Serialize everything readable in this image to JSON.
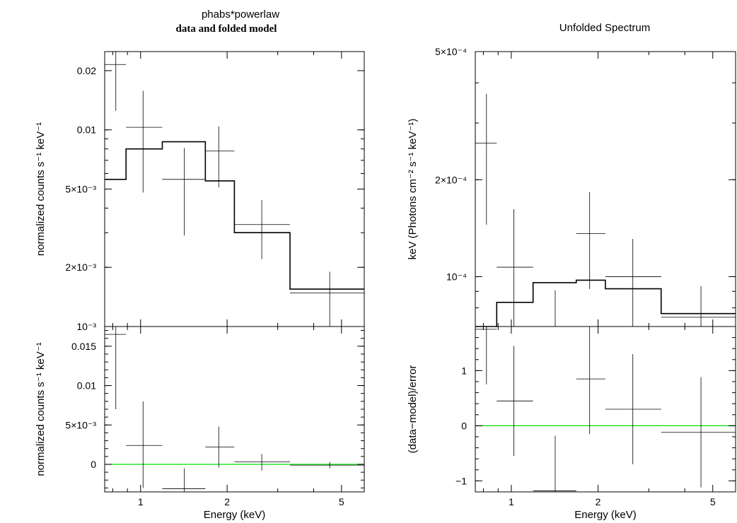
{
  "left": {
    "title": "phabs*powerlaw",
    "subtitle": "data and folded model"
  },
  "right": {
    "title": "Unfolded Spectrum"
  },
  "colors": {
    "axes": "#000000",
    "zero_line": "#00dd00"
  },
  "chart_data": [
    {
      "id": "left-top",
      "type": "line",
      "ylabel": "normalized counts s⁻¹ keV⁻¹",
      "xscale": "log",
      "yscale": "log",
      "xlim": [
        0.75,
        6.0
      ],
      "ylim": [
        0.001,
        0.025
      ],
      "xticks": [
        "1",
        "2",
        "5"
      ],
      "yticks": [
        "10⁻³",
        "2×10⁻³",
        "5×10⁻³",
        "0.01",
        "0.02"
      ],
      "data": [
        {
          "x": 0.82,
          "xlo": 0.75,
          "xhi": 0.89,
          "y": 0.0215,
          "ylo": 0.0125,
          "yhi": 0.025
        },
        {
          "x": 1.02,
          "xlo": 0.89,
          "xhi": 1.19,
          "y": 0.0103,
          "ylo": 0.0048,
          "yhi": 0.0158
        },
        {
          "x": 1.42,
          "xlo": 1.19,
          "xhi": 1.68,
          "y": 0.0056,
          "ylo": 0.0029,
          "yhi": 0.0081
        },
        {
          "x": 1.87,
          "xlo": 1.68,
          "xhi": 2.12,
          "y": 0.0078,
          "ylo": 0.0051,
          "yhi": 0.0104
        },
        {
          "x": 2.64,
          "xlo": 2.12,
          "xhi": 3.31,
          "y": 0.0033,
          "ylo": 0.0022,
          "yhi": 0.0044
        },
        {
          "x": 4.55,
          "xlo": 3.31,
          "xhi": 6.0,
          "y": 0.00148,
          "ylo": 0.001,
          "yhi": 0.0019
        }
      ],
      "model": [
        0.0056,
        0.008,
        0.0087,
        0.0055,
        0.003,
        0.00155
      ]
    },
    {
      "id": "left-bottom",
      "type": "line",
      "xlabel": "Energy (keV)",
      "ylabel": "normalized counts s⁻¹ keV⁻¹",
      "xscale": "log",
      "yscale": "linear",
      "xlim": [
        0.75,
        6.0
      ],
      "ylim": [
        -0.0035,
        0.0175
      ],
      "xticks": [
        "1",
        "2",
        "5"
      ],
      "yticks": [
        "0",
        "5×10⁻³",
        "0.01",
        "0.015"
      ],
      "zero_line": 0,
      "data": [
        {
          "x": 0.82,
          "xlo": 0.75,
          "xhi": 0.89,
          "y": 0.0165,
          "ylo": 0.007,
          "yhi": 0.0175
        },
        {
          "x": 1.02,
          "xlo": 0.89,
          "xhi": 1.19,
          "y": 0.0024,
          "ylo": -0.003,
          "yhi": 0.008
        },
        {
          "x": 1.42,
          "xlo": 1.19,
          "xhi": 1.68,
          "y": -0.0031,
          "ylo": -0.0035,
          "yhi": -0.0005
        },
        {
          "x": 1.87,
          "xlo": 1.68,
          "xhi": 2.12,
          "y": 0.0022,
          "ylo": -0.0004,
          "yhi": 0.0048
        },
        {
          "x": 2.64,
          "xlo": 2.12,
          "xhi": 3.31,
          "y": 0.0003,
          "ylo": -0.0008,
          "yhi": 0.0013
        },
        {
          "x": 4.55,
          "xlo": 3.31,
          "xhi": 6.0,
          "y": -0.0001,
          "ylo": -0.0005,
          "yhi": 0.0003
        }
      ]
    },
    {
      "id": "right-top",
      "type": "line",
      "ylabel": "keV (Photons cm⁻² s⁻¹ keV⁻¹)",
      "xscale": "log",
      "yscale": "log",
      "xlim": [
        0.75,
        6.0
      ],
      "ylim": [
        7e-05,
        0.0005
      ],
      "xticks": [
        "1",
        "2",
        "5"
      ],
      "yticks": [
        "10⁻⁴",
        "2×10⁻⁴",
        "5×10⁻⁴"
      ],
      "data": [
        {
          "x": 0.82,
          "xlo": 0.75,
          "xhi": 0.89,
          "y": 0.00026,
          "ylo": 0.000145,
          "yhi": 0.00037
        },
        {
          "x": 1.02,
          "xlo": 0.89,
          "xhi": 1.19,
          "y": 0.000107,
          "ylo": 7e-05,
          "yhi": 0.000162
        },
        {
          "x": 1.42,
          "xlo": 1.19,
          "xhi": 1.68,
          "y": null,
          "ylo": 7e-05,
          "yhi": 9.07e-05
        },
        {
          "x": 1.87,
          "xlo": 1.68,
          "xhi": 2.12,
          "y": 0.000136,
          "ylo": 9.15e-05,
          "yhi": 0.000183
        },
        {
          "x": 2.64,
          "xlo": 2.12,
          "xhi": 3.31,
          "y": 0.0001,
          "ylo": 6.85e-05,
          "yhi": 0.000131
        },
        {
          "x": 4.55,
          "xlo": 3.31,
          "xhi": 6.0,
          "y": 7.48e-05,
          "ylo": 7e-05,
          "yhi": 9.35e-05
        }
      ],
      "model": [
        7e-05,
        8.32e-05,
        9.58e-05,
        9.75e-05,
        9.17e-05,
        7.68e-05
      ]
    },
    {
      "id": "right-bottom",
      "type": "line",
      "xlabel": "Energy (keV)",
      "ylabel": "(data−model)/error",
      "xscale": "log",
      "yscale": "linear",
      "xlim": [
        0.75,
        6.0
      ],
      "ylim": [
        -1.2,
        1.8
      ],
      "xticks": [
        "1",
        "2",
        "5"
      ],
      "yticks": [
        "−1",
        "0",
        "1"
      ],
      "zero_line": 0,
      "data": [
        {
          "x": 0.82,
          "xlo": 0.75,
          "xhi": 0.89,
          "y": 1.75,
          "ylo": 0.75,
          "yhi": 1.8
        },
        {
          "x": 1.02,
          "xlo": 0.89,
          "xhi": 1.19,
          "y": 0.45,
          "ylo": -0.55,
          "yhi": 1.45
        },
        {
          "x": 1.42,
          "xlo": 1.19,
          "xhi": 1.68,
          "y": -1.18,
          "ylo": -1.2,
          "yhi": -0.18
        },
        {
          "x": 1.87,
          "xlo": 1.68,
          "xhi": 2.12,
          "y": 0.85,
          "ylo": -0.15,
          "yhi": 1.8
        },
        {
          "x": 2.64,
          "xlo": 2.12,
          "xhi": 3.31,
          "y": 0.3,
          "ylo": -0.7,
          "yhi": 1.3
        },
        {
          "x": 4.55,
          "xlo": 3.31,
          "xhi": 6.0,
          "y": -0.12,
          "ylo": -1.12,
          "yhi": 0.88
        }
      ]
    }
  ]
}
